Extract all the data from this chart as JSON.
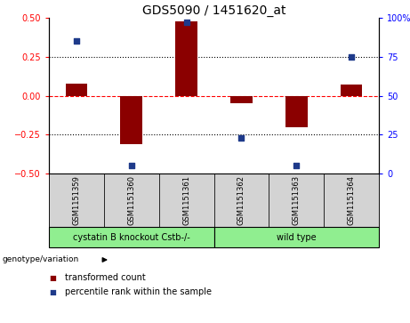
{
  "title": "GDS5090 / 1451620_at",
  "samples": [
    "GSM1151359",
    "GSM1151360",
    "GSM1151361",
    "GSM1151362",
    "GSM1151363",
    "GSM1151364"
  ],
  "red_values": [
    0.08,
    -0.31,
    0.48,
    -0.05,
    -0.2,
    0.07
  ],
  "blue_values": [
    85,
    5,
    97,
    23,
    5,
    75
  ],
  "ylim_left": [
    -0.5,
    0.5
  ],
  "ylim_right": [
    0,
    100
  ],
  "yticks_left": [
    -0.5,
    -0.25,
    0,
    0.25,
    0.5
  ],
  "yticks_right": [
    0,
    25,
    50,
    75,
    100
  ],
  "group1_label": "cystatin B knockout Cstb-/-",
  "group2_label": "wild type",
  "group1_indices": [
    0,
    1,
    2
  ],
  "group2_indices": [
    3,
    4,
    5
  ],
  "group1_color": "#90EE90",
  "group2_color": "#90EE90",
  "sample_box_color": "#d3d3d3",
  "bar_color": "#8B0000",
  "dot_color": "#1E3A8A",
  "legend_label_red": "transformed count",
  "legend_label_blue": "percentile rank within the sample",
  "genotype_label": "genotype/variation",
  "title_fontsize": 10,
  "tick_fontsize": 7,
  "sample_fontsize": 6,
  "group_fontsize": 7,
  "legend_fontsize": 7,
  "bar_width": 0.4,
  "dot_size": 25
}
